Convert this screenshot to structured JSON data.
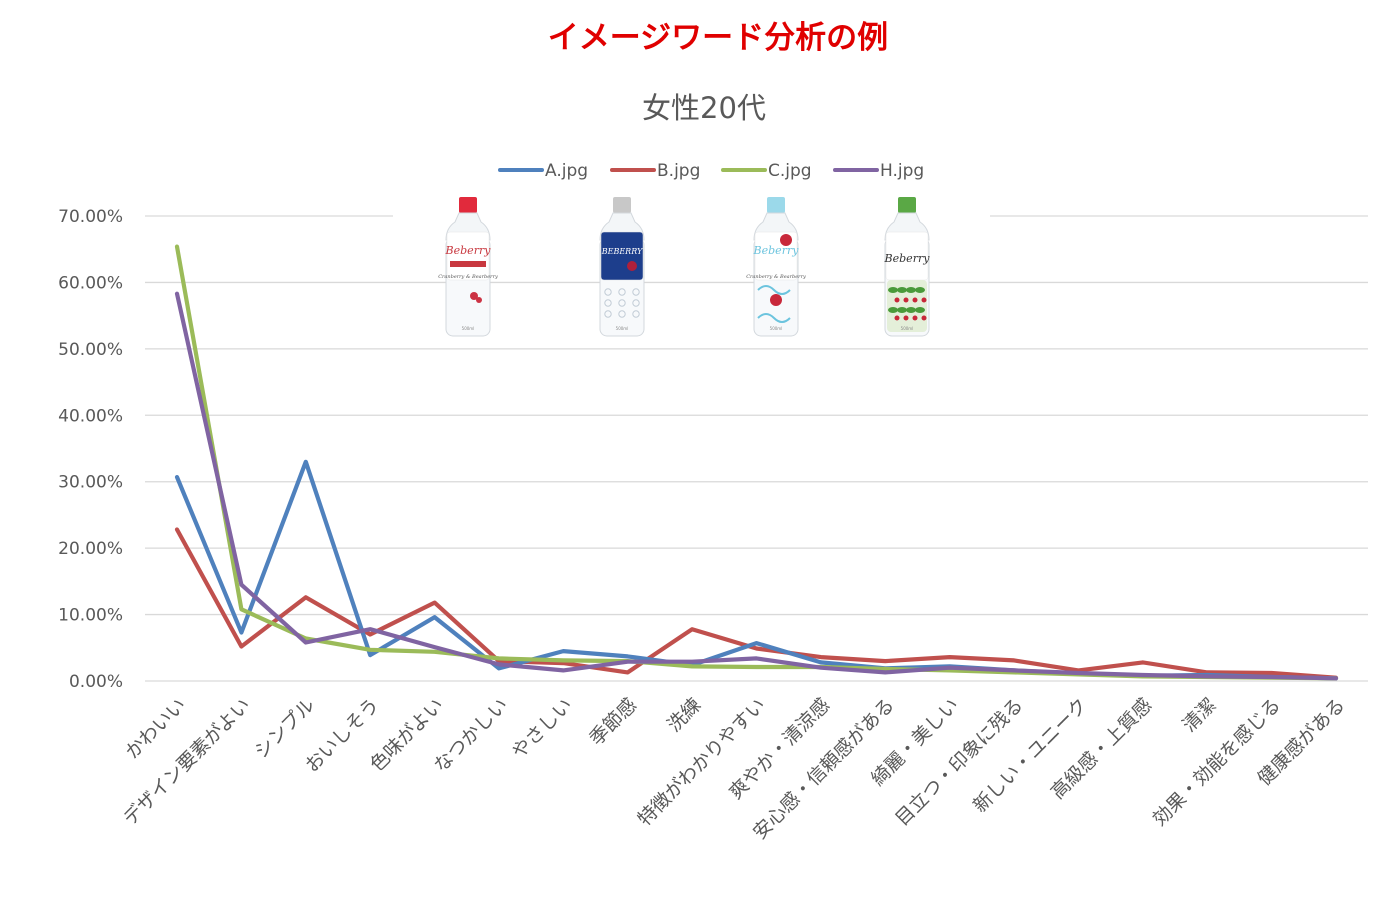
{
  "header": {
    "main_title": "イメージワード分析の例",
    "main_title_color": "#e00000"
  },
  "chart_data": {
    "type": "line",
    "title": "女性20代",
    "xlabel": "",
    "ylabel": "",
    "ylim": [
      0,
      0.7
    ],
    "y_ticks": [
      {
        "value": 0.0,
        "label": "0.00%"
      },
      {
        "value": 0.1,
        "label": "10.00%"
      },
      {
        "value": 0.2,
        "label": "20.00%"
      },
      {
        "value": 0.3,
        "label": "30.00%"
      },
      {
        "value": 0.4,
        "label": "40.00%"
      },
      {
        "value": 0.5,
        "label": "50.00%"
      },
      {
        "value": 0.6,
        "label": "60.00%"
      },
      {
        "value": 0.7,
        "label": "70.00%"
      }
    ],
    "grid": true,
    "legend_position": "top",
    "categories": [
      "かわいい",
      "デザイン要素がよい",
      "シンプル",
      "おいしそう",
      "色味がよい",
      "なつかしい",
      "やさしい",
      "季節感",
      "洗練",
      "特徴がわかりやすい",
      "爽やか・清涼感",
      "安心感・信頼感がある",
      "綺麗・美しい",
      "目立つ・印象に残る",
      "新しい・ユニーク",
      "高級感・上質感",
      "清潔",
      "効果・効能を感じる",
      "健康感がある"
    ],
    "series": [
      {
        "name": "A.jpg",
        "color": "#4f81bd",
        "values": [
          0.307,
          0.073,
          0.33,
          0.039,
          0.096,
          0.019,
          0.045,
          0.037,
          0.024,
          0.057,
          0.028,
          0.019,
          0.022,
          0.016,
          0.011,
          0.008,
          0.009,
          0.006,
          0.004
        ]
      },
      {
        "name": "B.jpg",
        "color": "#c0504d",
        "values": [
          0.228,
          0.052,
          0.126,
          0.07,
          0.118,
          0.03,
          0.027,
          0.013,
          0.078,
          0.049,
          0.036,
          0.03,
          0.036,
          0.031,
          0.016,
          0.028,
          0.013,
          0.012,
          0.005
        ]
      },
      {
        "name": "C.jpg",
        "color": "#9bbb59",
        "values": [
          0.654,
          0.108,
          0.064,
          0.047,
          0.044,
          0.034,
          0.031,
          0.03,
          0.022,
          0.021,
          0.021,
          0.018,
          0.016,
          0.013,
          0.01,
          0.007,
          0.006,
          0.005,
          0.004
        ]
      },
      {
        "name": "H.jpg",
        "color": "#8064a2",
        "values": [
          0.583,
          0.145,
          0.058,
          0.078,
          0.051,
          0.025,
          0.016,
          0.029,
          0.029,
          0.034,
          0.02,
          0.013,
          0.02,
          0.016,
          0.012,
          0.009,
          0.007,
          0.006,
          0.004
        ]
      }
    ],
    "product_images": [
      {
        "id": "A",
        "brand": "Beberry",
        "product": "Cranberry & Bearberry",
        "volume": "500ml",
        "cap_color": "#e12a3c",
        "accent_color": "#c8383f"
      },
      {
        "id": "B",
        "brand": "BEBERRY",
        "product": "",
        "volume": "500ml",
        "cap_color": "#c8c8c8",
        "accent_color": "#1d3e8c"
      },
      {
        "id": "C",
        "brand": "Beberry",
        "product": "Cranberry & Bearberry",
        "volume": "500ml",
        "cap_color": "#9bd9ea",
        "accent_color": "#6cc4de"
      },
      {
        "id": "H",
        "brand": "Beberry",
        "product": "",
        "volume": "500ml",
        "cap_color": "#5aa845",
        "accent_color": "#4a9a3a"
      }
    ]
  }
}
